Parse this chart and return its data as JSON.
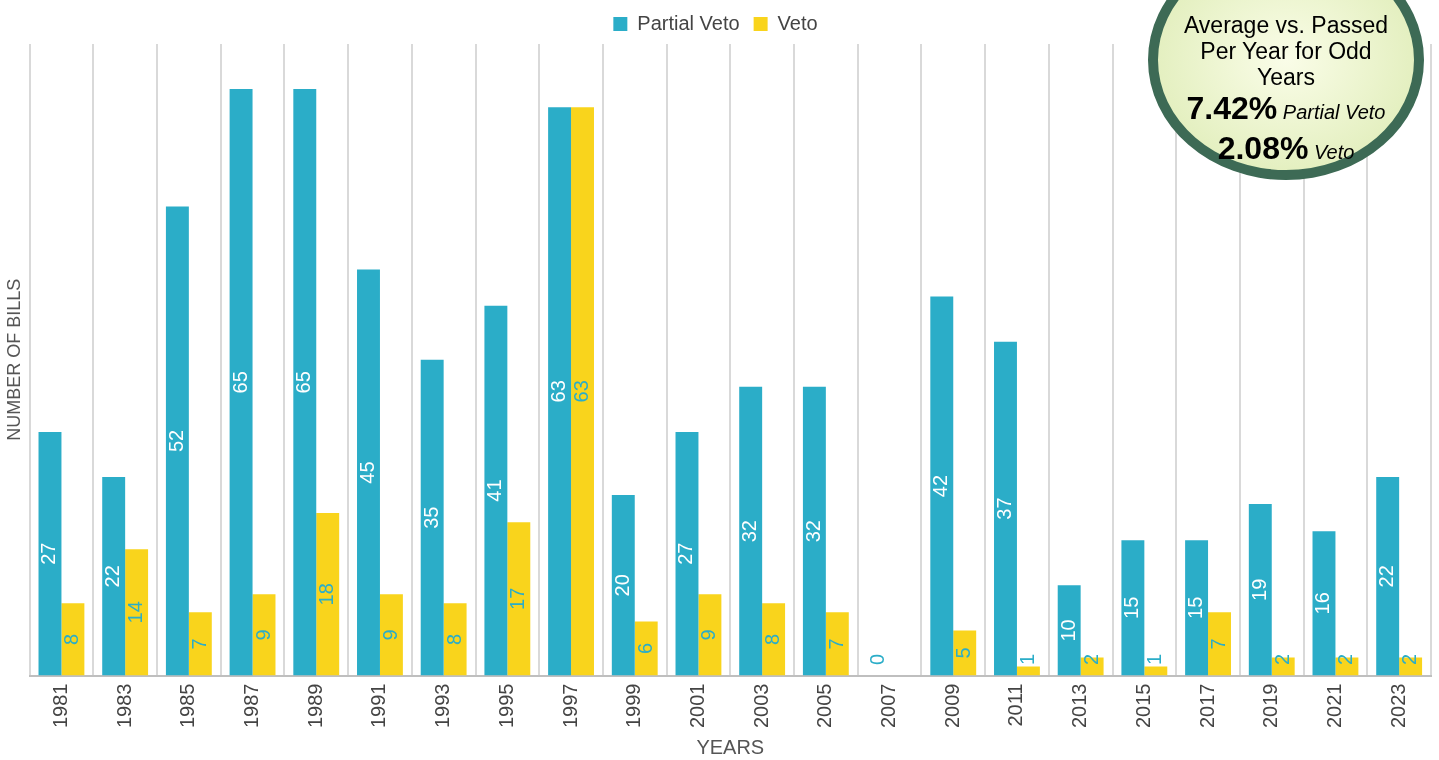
{
  "chart_data": {
    "type": "bar",
    "xlabel": "YEARS",
    "ylabel": "NUMBER OF BILLS",
    "categories": [
      "1981",
      "1983",
      "1985",
      "1987",
      "1989",
      "1991",
      "1993",
      "1995",
      "1997",
      "1999",
      "2001",
      "2003",
      "2005",
      "2007",
      "2009",
      "2011",
      "2013",
      "2015",
      "2017",
      "2019",
      "2021",
      "2023"
    ],
    "series": [
      {
        "name": "Partial Veto",
        "color": "#2badc8",
        "values": [
          27,
          22,
          52,
          65,
          65,
          45,
          35,
          41,
          63,
          20,
          27,
          32,
          32,
          0,
          42,
          37,
          10,
          15,
          15,
          19,
          16,
          22
        ],
        "value_labels": [
          "27",
          "22",
          "52",
          "65",
          "65",
          "45",
          "35",
          "41",
          "63",
          "20",
          "27",
          "32",
          "32",
          "0",
          "42",
          "37",
          "10",
          "15",
          "15",
          "19",
          "16",
          "22"
        ]
      },
      {
        "name": "Veto",
        "color": "#f9d41c",
        "values": [
          8,
          14,
          7,
          9,
          18,
          9,
          8,
          17,
          63,
          6,
          9,
          8,
          7,
          0,
          5,
          1,
          2,
          1,
          7,
          2,
          2,
          2
        ],
        "value_labels": [
          "8",
          "14",
          "7",
          "9",
          "18",
          "9",
          "8",
          "17",
          "63",
          "6",
          "9",
          "8",
          "7",
          null,
          "5",
          "1",
          "2",
          "1",
          "7",
          "2",
          "2",
          "2"
        ]
      }
    ],
    "ylim": [
      0,
      70
    ],
    "tick_labels": "x",
    "grid": "x",
    "legend": "top",
    "annotations": [
      "Average vs. Passed Per Year for Odd Years",
      "7.42% Partial Veto",
      "2.08% Veto"
    ]
  }
}
